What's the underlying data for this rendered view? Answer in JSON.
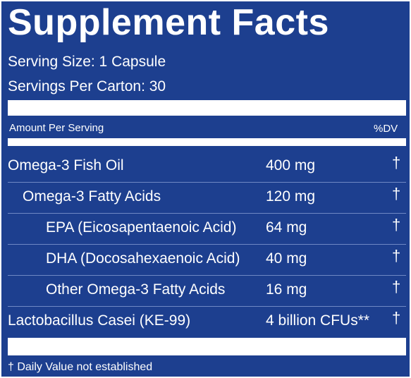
{
  "title": "Supplement Facts",
  "serving_size": "Serving Size: 1 Capsule",
  "servings_per": "Servings Per Carton: 30",
  "header": {
    "amount_label": "Amount Per Serving",
    "dv_label": "%DV"
  },
  "rows": [
    {
      "name": "Omega-3 Fish Oil",
      "amount": "400 mg",
      "dv": "†"
    },
    {
      "name": "Omega-3 Fatty Acids",
      "amount": "120 mg",
      "dv": "†"
    },
    {
      "name": "EPA (Eicosapentaenoic Acid)",
      "amount": "64 mg",
      "dv": "†"
    },
    {
      "name": "DHA (Docosahexaenoic Acid)",
      "amount": "40 mg",
      "dv": "†"
    },
    {
      "name": "Other Omega-3 Fatty Acids",
      "amount": "16 mg",
      "dv": "†"
    },
    {
      "name": "Lactobacillus Casei (KE-99)",
      "amount": "4 billion CFUs**",
      "dv": "†"
    }
  ],
  "footnote": "† Daily Value not established",
  "colors": {
    "background": "#1d3f8f",
    "text": "#ffffff"
  }
}
